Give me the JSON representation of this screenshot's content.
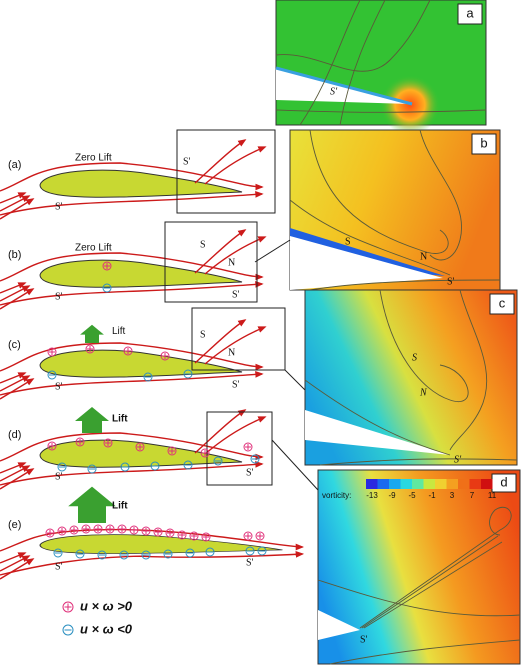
{
  "schematic": {
    "a": {
      "tag": "(a)",
      "lift": "Zero Lift",
      "labels": [
        "S'",
        "S'"
      ]
    },
    "b": {
      "tag": "(b)",
      "lift": "Zero Lift",
      "labels": [
        "S",
        "N",
        "S'",
        "S'"
      ]
    },
    "c": {
      "tag": "(c)",
      "lift": "Lift",
      "labels": [
        "S",
        "N",
        "S'",
        "S'"
      ]
    },
    "d": {
      "tag": "(d)",
      "lift": "Lift",
      "labels": [
        "S'",
        "S'"
      ]
    },
    "e": {
      "tag": "(e)",
      "lift": "Lift",
      "labels": [
        "S'",
        "S'"
      ]
    }
  },
  "legend": {
    "positive": "u × ω >0",
    "negative": "u × ω <0"
  },
  "simulation": {
    "a": {
      "tag": "a",
      "labels": [
        "S'"
      ]
    },
    "b": {
      "tag": "b",
      "labels": [
        "S",
        "N",
        "S'"
      ]
    },
    "c": {
      "tag": "c",
      "labels": [
        "S",
        "N",
        "S'"
      ]
    },
    "d": {
      "tag": "d",
      "labels": [
        "S'"
      ],
      "colorbar": {
        "title": "vorticity:",
        "ticks": [
          -13,
          -9,
          -5,
          -1,
          3,
          7,
          11
        ]
      }
    }
  }
}
